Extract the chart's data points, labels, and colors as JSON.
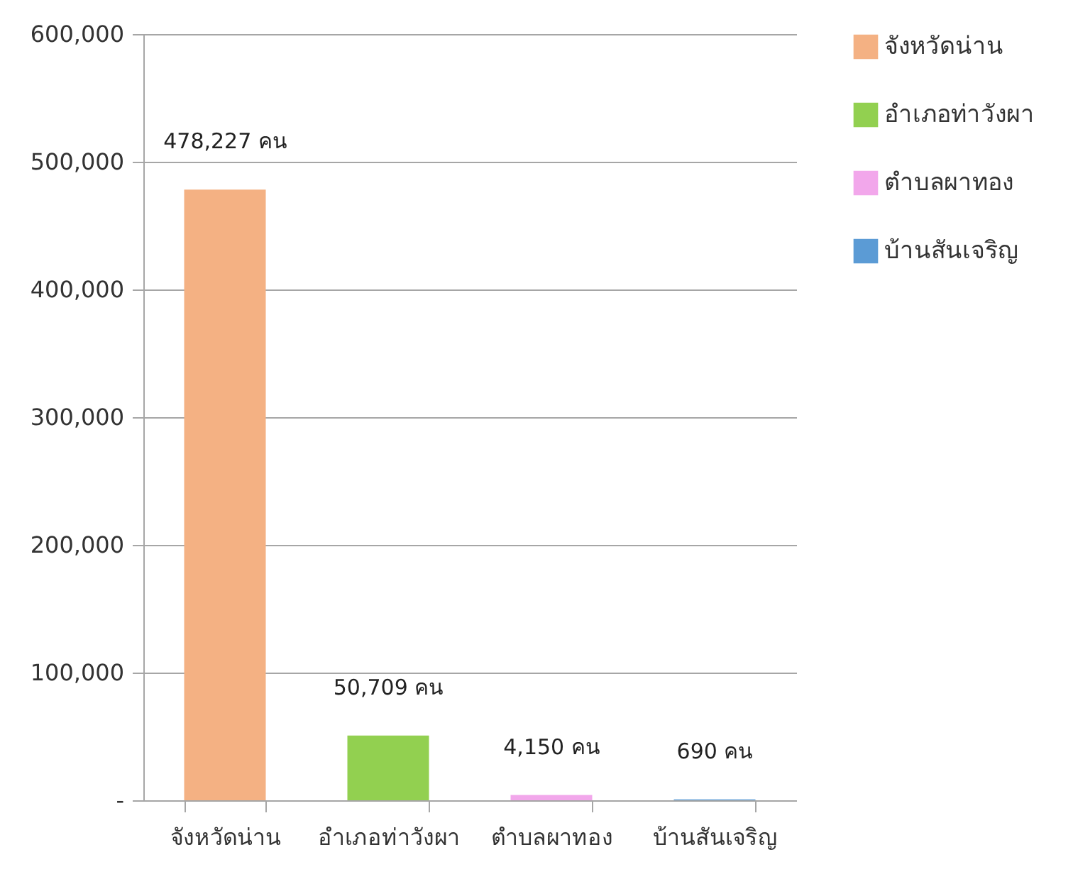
{
  "chart_data": {
    "type": "bar",
    "categories": [
      "จังหวัดน่าน",
      "อำเภอท่าวังผา",
      "ตำบลผาทอง",
      "บ้านสันเจริญ"
    ],
    "series": [
      {
        "name": "จังหวัดน่าน",
        "color": "#f4b183",
        "values": [
          478227,
          null,
          null,
          null
        ],
        "value_labels": [
          "478,227 คน",
          null,
          null,
          null
        ]
      },
      {
        "name": "อำเภอท่าวังผา",
        "color": "#92d050",
        "values": [
          null,
          50709,
          null,
          null
        ],
        "value_labels": [
          null,
          "50,709 คน",
          null,
          null
        ]
      },
      {
        "name": "ตำบลผาทอง",
        "color": "#f2a7eb",
        "values": [
          null,
          null,
          4150,
          null
        ],
        "value_labels": [
          null,
          null,
          "4,150 คน",
          null
        ]
      },
      {
        "name": "บ้านสันเจริญ",
        "color": "#5b9bd5",
        "values": [
          null,
          null,
          null,
          690
        ],
        "value_labels": [
          null,
          null,
          null,
          "690 คน"
        ]
      }
    ],
    "ylim": [
      0,
      600000
    ],
    "yticks": [
      {
        "value": 0,
        "label": "-"
      },
      {
        "value": 100000,
        "label": "100,000"
      },
      {
        "value": 200000,
        "label": "200,000"
      },
      {
        "value": 300000,
        "label": "300,000"
      },
      {
        "value": 400000,
        "label": "400,000"
      },
      {
        "value": 500000,
        "label": "500,000"
      },
      {
        "value": 600000,
        "label": "600,000"
      }
    ],
    "grid": "y",
    "legend": "right"
  }
}
